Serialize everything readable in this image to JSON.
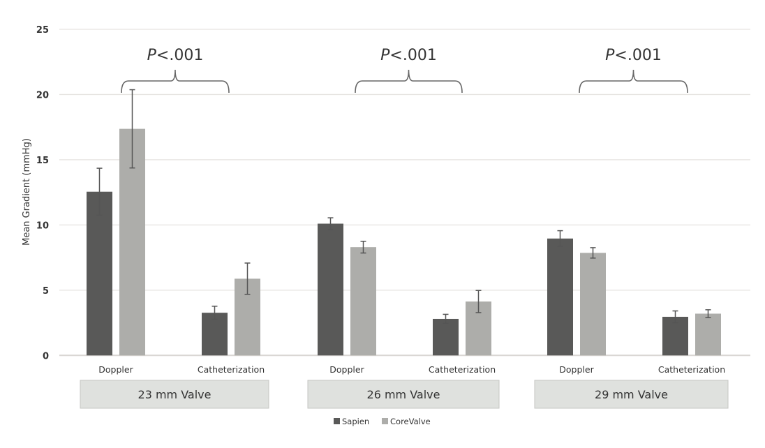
{
  "chart_data": {
    "type": "bar",
    "ylabel": "Mean Gradient (mmHg)",
    "ylim": [
      0,
      25
    ],
    "yticks": [
      "0",
      "5",
      "10",
      "15",
      "20",
      "25"
    ],
    "grid": true,
    "legend_position": "bottom",
    "groups": [
      {
        "label": "23 mm Valve",
        "annotation": "P<.001"
      },
      {
        "label": "26 mm Valve",
        "annotation": "P<.001"
      },
      {
        "label": "29 mm Valve",
        "annotation": "P<.001"
      }
    ],
    "categories": [
      "Doppler",
      "Catheterization",
      "Doppler",
      "Catheterization",
      "Doppler",
      "Catheterization"
    ],
    "series": [
      {
        "name": "Sapien",
        "color": "#595958",
        "values": [
          12.55,
          3.27,
          10.1,
          2.8,
          8.96,
          2.96
        ],
        "error": [
          1.8,
          0.5,
          0.45,
          0.35,
          0.6,
          0.45
        ]
      },
      {
        "name": "CoreValve",
        "color": "#adadaa",
        "values": [
          17.37,
          5.88,
          8.3,
          4.13,
          7.86,
          3.2
        ],
        "error": [
          3.0,
          1.2,
          0.45,
          0.85,
          0.4,
          0.3
        ]
      }
    ]
  }
}
